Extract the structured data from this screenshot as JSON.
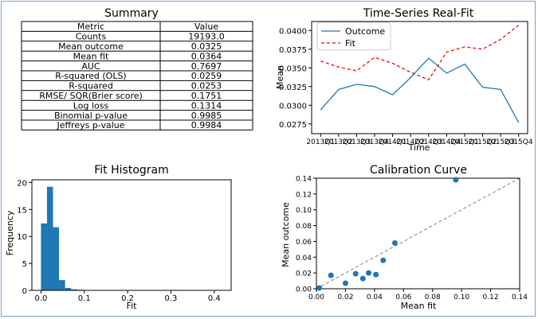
{
  "colors": {
    "blue": "#1f77b4",
    "red": "#ff0000",
    "frame": "#7aa2d4",
    "diag": "#808080"
  },
  "chart_data": [
    {
      "type": "table",
      "title": "Summary",
      "headers": [
        "Metric",
        "Value"
      ],
      "rows": [
        [
          "Counts",
          "19193.0"
        ],
        [
          "Mean outcome",
          "0.0325"
        ],
        [
          "Mean fit",
          "0.0364"
        ],
        [
          "AUC",
          "0.7697"
        ],
        [
          "R-squared (OLS)",
          "0.0259"
        ],
        [
          "R-squared",
          "0.0253"
        ],
        [
          "RMSE/ SQR(Brier score)",
          "0.1751"
        ],
        [
          "Log loss",
          "0.1314"
        ],
        [
          "Binomial p-value",
          "0.9985"
        ],
        [
          "Jeffreys p-value",
          "0.9984"
        ]
      ]
    },
    {
      "type": "line",
      "title": "Time-Series Real-Fit",
      "xlabel": "Time",
      "ylabel": "Mean",
      "categories": [
        "2013Q1",
        "2013Q2",
        "2013Q3",
        "2013Q4",
        "2014Q1",
        "2014Q2",
        "2014Q3",
        "2014Q4",
        "2015Q1",
        "2015Q2",
        "2015Q3",
        "2015Q4"
      ],
      "ylim": [
        0.0262,
        0.0412
      ],
      "yticks": [
        0.0275,
        0.03,
        0.0325,
        0.035,
        0.0375,
        0.04
      ],
      "ytick_labels": [
        "0.0275",
        "0.0300",
        "0.0325",
        "0.0350",
        "0.0375",
        "0.0400"
      ],
      "series": [
        {
          "name": "Outcome",
          "style": "solid",
          "values": [
            0.0294,
            0.0321,
            0.0328,
            0.0325,
            0.0314,
            0.0337,
            0.0363,
            0.0343,
            0.0355,
            0.0324,
            0.0321,
            0.0277
          ]
        },
        {
          "name": "Fit",
          "style": "dashed",
          "values": [
            0.0359,
            0.0351,
            0.0346,
            0.0364,
            0.0356,
            0.0344,
            0.0334,
            0.0371,
            0.0378,
            0.0375,
            0.0388,
            0.0407
          ]
        }
      ],
      "legend": "top-left"
    },
    {
      "type": "bar",
      "title": "Fit Histogram",
      "xlabel": "Fit",
      "ylabel": "Frequency",
      "bin_start": 0.0,
      "bin_width": 0.0139,
      "values": [
        12.4,
        19.2,
        11.7,
        1.9,
        0.45,
        0.2,
        0.12,
        0.06,
        0.03,
        0.02,
        0.01,
        0.01,
        0.01
      ],
      "xlim": [
        -0.021,
        0.439
      ],
      "ylim": [
        0,
        20.5
      ],
      "xticks": [
        0.0,
        0.1,
        0.2,
        0.3,
        0.4
      ],
      "xtick_labels": [
        "0.0",
        "0.1",
        "0.2",
        "0.3",
        "0.4"
      ],
      "yticks": [
        0,
        5,
        10,
        15,
        20
      ],
      "ytick_labels": [
        "0",
        "5",
        "10",
        "15",
        "20"
      ]
    },
    {
      "type": "scatter",
      "title": "Calibration Curve",
      "xlabel": "Mean fit",
      "ylabel": "Mean outcome",
      "points": [
        {
          "x": 0.002,
          "y": 0.001
        },
        {
          "x": 0.01,
          "y": 0.017
        },
        {
          "x": 0.02,
          "y": 0.007
        },
        {
          "x": 0.027,
          "y": 0.019
        },
        {
          "x": 0.032,
          "y": 0.013
        },
        {
          "x": 0.036,
          "y": 0.02
        },
        {
          "x": 0.041,
          "y": 0.018
        },
        {
          "x": 0.046,
          "y": 0.036
        },
        {
          "x": 0.054,
          "y": 0.058
        },
        {
          "x": 0.096,
          "y": 0.138
        }
      ],
      "diagonal": true,
      "xlim": [
        0,
        0.14
      ],
      "ylim": [
        0,
        0.14
      ],
      "xticks": [
        0.0,
        0.02,
        0.04,
        0.06,
        0.08,
        0.1,
        0.12,
        0.14
      ],
      "xtick_labels": [
        "0.00",
        "0.02",
        "0.04",
        "0.06",
        "0.08",
        "0.10",
        "0.12",
        "0.14"
      ],
      "yticks": [
        0.0,
        0.02,
        0.04,
        0.06,
        0.08,
        0.1,
        0.12,
        0.14
      ],
      "ytick_labels": [
        "0.00",
        "0.02",
        "0.04",
        "0.06",
        "0.08",
        "0.10",
        "0.12",
        "0.14"
      ]
    }
  ]
}
